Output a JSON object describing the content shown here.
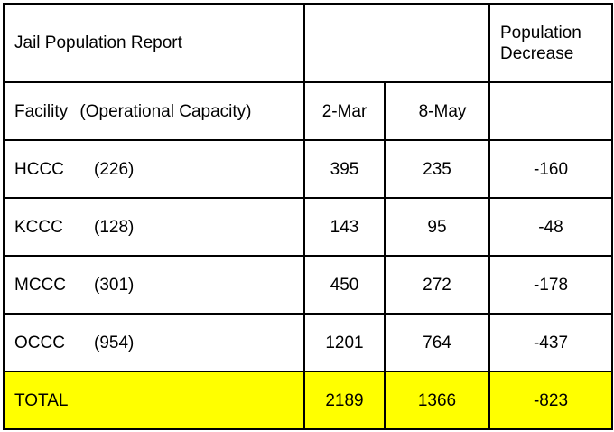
{
  "report": {
    "title": "Jail Population Report",
    "decrease_header_line1": "Population",
    "decrease_header_line2": "Decrease",
    "facility_header": "Facility",
    "capacity_header": "(Operational Capacity)",
    "col_date1": "2-Mar",
    "col_date2": "8-May",
    "rows": [
      {
        "facility": "HCCC",
        "capacity": "(226)",
        "mar2": "395",
        "may8": "235",
        "decrease": "-160"
      },
      {
        "facility": "KCCC",
        "capacity": "(128)",
        "mar2": "143",
        "may8": "95",
        "decrease": "-48"
      },
      {
        "facility": "MCCC",
        "capacity": "(301)",
        "mar2": "450",
        "may8": "272",
        "decrease": "-178"
      },
      {
        "facility": "OCCC",
        "capacity": "(954)",
        "mar2": "1201",
        "may8": "764",
        "decrease": "-437"
      }
    ],
    "total": {
      "label": "TOTAL",
      "mar2": "2189",
      "may8": "1366",
      "decrease": "-823"
    },
    "total_highlight_color": "#ffff00"
  }
}
